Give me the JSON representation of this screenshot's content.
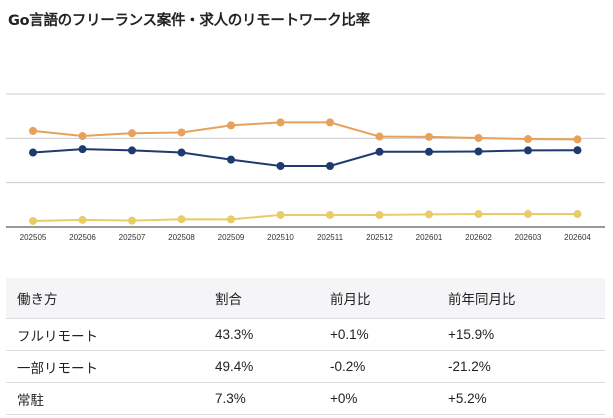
{
  "title": "Go言語のフリーランス案件・求人のリモートワーク比率",
  "chart_data": {
    "type": "line",
    "title": "Go言語のフリーランス案件・求人のリモートワーク比率",
    "categories": [
      "202505",
      "202506",
      "202507",
      "202508",
      "202509",
      "202510",
      "202511",
      "202512",
      "202601",
      "202602",
      "202603",
      "202604"
    ],
    "ylim": [
      0,
      75
    ],
    "gridlines": [
      25,
      50,
      75
    ],
    "grid": true,
    "series": [
      {
        "key": "partial",
        "color": "#e8a15a",
        "values": [
          54.2,
          51.3,
          52.9,
          53.3,
          57.3,
          59.0,
          59.0,
          51.0,
          50.8,
          50.2,
          49.6,
          49.4
        ]
      },
      {
        "key": "full",
        "color": "#1f3a6e",
        "values": [
          42.0,
          43.9,
          43.2,
          42.0,
          38.0,
          34.4,
          34.4,
          42.4,
          42.4,
          42.6,
          43.2,
          43.3
        ]
      },
      {
        "key": "onsite",
        "color": "#e8cc6a",
        "values": [
          3.4,
          4.0,
          3.6,
          4.4,
          4.3,
          6.8,
          6.8,
          6.8,
          7.1,
          7.3,
          7.3,
          7.3
        ]
      }
    ]
  },
  "table": {
    "headers": [
      "働き方",
      "割合",
      "前月比",
      "前年同月比"
    ],
    "rows": [
      [
        "フルリモート",
        "43.3%",
        "+0.1%",
        "+15.9%"
      ],
      [
        "一部リモート",
        "49.4%",
        "-0.2%",
        "-21.2%"
      ],
      [
        "常駐",
        "7.3%",
        "+0%",
        "+5.2%"
      ]
    ]
  }
}
